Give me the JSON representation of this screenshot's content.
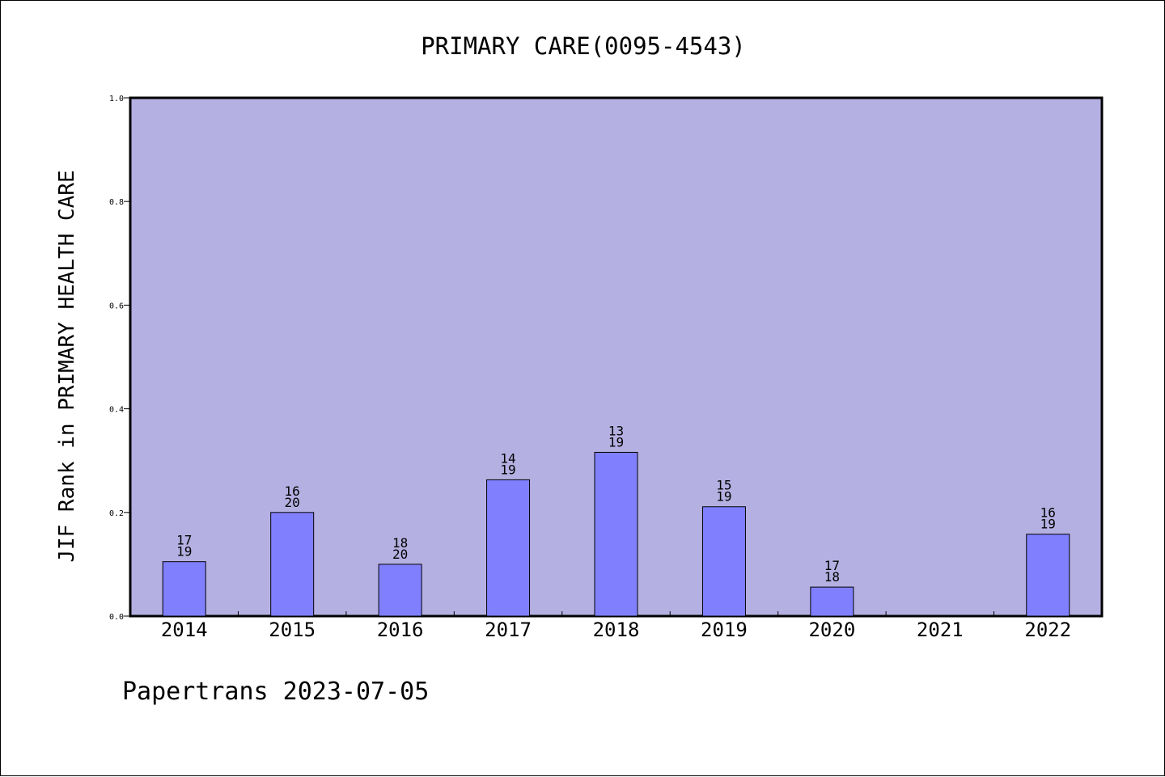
{
  "chart_data": {
    "type": "bar",
    "title": "PRIMARY CARE(0095-4543)",
    "ylabel": "JIF Rank in PRIMARY HEALTH CARE",
    "xlabel": "",
    "footer": "Papertrans 2023-07-05",
    "categories": [
      "2014",
      "2015",
      "2016",
      "2017",
      "2018",
      "2019",
      "2020",
      "2021",
      "2022"
    ],
    "values": [
      0.105,
      0.2,
      0.1,
      0.263,
      0.316,
      0.211,
      0.056,
      null,
      0.158
    ],
    "ranks": [
      "17",
      "16",
      "18",
      "14",
      "13",
      "15",
      "17",
      "",
      "16"
    ],
    "totals": [
      "19",
      "20",
      "20",
      "19",
      "19",
      "19",
      "18",
      "",
      "19"
    ],
    "ylim": [
      0,
      1.0
    ],
    "yticks": [
      "0.0",
      "0.2",
      "0.4",
      "0.6",
      "0.8",
      "1.0"
    ],
    "grid": false,
    "legend": "none",
    "colors": {
      "plot_background": "#b5b0e2",
      "bar_fill": "#8080ff",
      "bar_stroke": "#000000"
    }
  }
}
